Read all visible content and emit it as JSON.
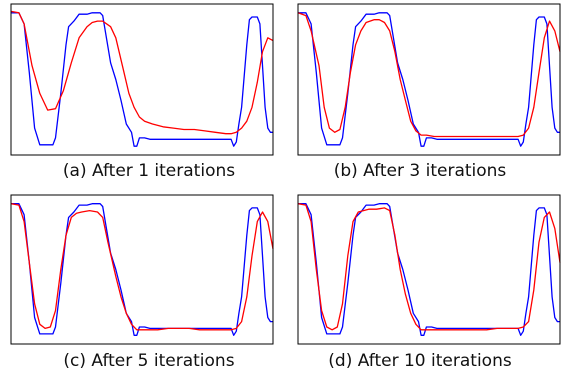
{
  "chart_data": [
    {
      "type": "line",
      "caption": "(a) After 1 iterations",
      "xlim": [
        0,
        100
      ],
      "ylim": [
        0,
        1
      ],
      "series": [
        {
          "color": "#0000ff",
          "x": [
            0,
            3,
            5,
            7,
            9,
            11,
            13,
            16,
            17,
            19,
            21,
            22,
            24,
            26,
            29,
            31,
            34,
            35,
            38,
            40,
            42,
            44,
            46,
            47,
            48,
            49,
            51,
            53,
            56,
            58,
            62,
            66,
            70,
            73,
            76,
            79,
            82,
            84,
            85,
            86,
            87,
            88,
            90,
            91,
            92,
            94,
            95,
            97,
            98,
            99,
            100
          ],
          "y": [
            0.98,
            0.98,
            0.9,
            0.55,
            0.15,
            0.03,
            0.03,
            0.03,
            0.08,
            0.4,
            0.75,
            0.88,
            0.92,
            0.97,
            0.97,
            0.98,
            0.98,
            0.96,
            0.62,
            0.5,
            0.35,
            0.18,
            0.12,
            0.02,
            0.02,
            0.08,
            0.08,
            0.07,
            0.07,
            0.07,
            0.07,
            0.07,
            0.07,
            0.07,
            0.07,
            0.07,
            0.07,
            0.07,
            0.02,
            0.05,
            0.18,
            0.3,
            0.75,
            0.93,
            0.95,
            0.95,
            0.9,
            0.3,
            0.15,
            0.12,
            0.12
          ]
        },
        {
          "color": "#ff0000",
          "x": [
            0,
            3,
            5,
            8,
            11,
            14,
            17,
            20,
            23,
            26,
            29,
            31,
            33,
            35,
            38,
            40,
            43,
            45,
            47,
            49,
            51,
            54,
            58,
            62,
            66,
            70,
            74,
            78,
            82,
            84,
            86,
            88,
            90,
            92,
            94,
            96,
            98,
            100
          ],
          "y": [
            0.99,
            0.98,
            0.9,
            0.6,
            0.4,
            0.28,
            0.29,
            0.42,
            0.62,
            0.8,
            0.88,
            0.91,
            0.92,
            0.92,
            0.88,
            0.8,
            0.56,
            0.4,
            0.3,
            0.23,
            0.2,
            0.18,
            0.16,
            0.15,
            0.14,
            0.14,
            0.13,
            0.12,
            0.11,
            0.11,
            0.12,
            0.15,
            0.2,
            0.3,
            0.48,
            0.7,
            0.8,
            0.78
          ]
        }
      ]
    },
    {
      "type": "line",
      "caption": "(b) After 3 iterations",
      "xlim": [
        0,
        100
      ],
      "ylim": [
        0,
        1
      ],
      "series": [
        {
          "color": "#0000ff",
          "x": [
            0,
            3,
            5,
            7,
            9,
            11,
            13,
            16,
            17,
            19,
            21,
            22,
            24,
            26,
            29,
            31,
            34,
            35,
            38,
            40,
            42,
            44,
            46,
            47,
            48,
            49,
            51,
            53,
            56,
            58,
            62,
            66,
            70,
            73,
            76,
            79,
            82,
            84,
            85,
            86,
            87,
            88,
            90,
            91,
            92,
            94,
            95,
            97,
            98,
            99,
            100
          ],
          "y": [
            0.98,
            0.98,
            0.9,
            0.55,
            0.15,
            0.03,
            0.03,
            0.03,
            0.08,
            0.4,
            0.75,
            0.88,
            0.92,
            0.97,
            0.97,
            0.98,
            0.98,
            0.96,
            0.62,
            0.5,
            0.35,
            0.18,
            0.12,
            0.02,
            0.02,
            0.08,
            0.08,
            0.07,
            0.07,
            0.07,
            0.07,
            0.07,
            0.07,
            0.07,
            0.07,
            0.07,
            0.07,
            0.07,
            0.02,
            0.05,
            0.18,
            0.3,
            0.75,
            0.93,
            0.95,
            0.95,
            0.9,
            0.3,
            0.15,
            0.12,
            0.12
          ]
        },
        {
          "color": "#ff0000",
          "x": [
            0,
            3,
            5,
            8,
            10,
            12,
            14,
            16,
            18,
            20,
            22,
            24,
            26,
            29,
            31,
            33,
            35,
            37,
            39,
            41,
            43,
            45,
            47,
            49,
            52,
            56,
            60,
            64,
            68,
            72,
            76,
            80,
            84,
            86,
            88,
            90,
            92,
            94,
            96,
            98,
            100
          ],
          "y": [
            0.98,
            0.96,
            0.85,
            0.6,
            0.3,
            0.15,
            0.12,
            0.14,
            0.3,
            0.55,
            0.75,
            0.85,
            0.91,
            0.93,
            0.93,
            0.91,
            0.85,
            0.7,
            0.5,
            0.35,
            0.2,
            0.13,
            0.1,
            0.1,
            0.09,
            0.09,
            0.09,
            0.09,
            0.09,
            0.09,
            0.09,
            0.09,
            0.09,
            0.1,
            0.15,
            0.3,
            0.55,
            0.8,
            0.92,
            0.85,
            0.7
          ]
        }
      ]
    },
    {
      "type": "line",
      "caption": "(c) After 5 iterations",
      "xlim": [
        0,
        100
      ],
      "ylim": [
        0,
        1
      ],
      "series": [
        {
          "color": "#0000ff",
          "x": [
            0,
            3,
            5,
            7,
            9,
            11,
            13,
            16,
            17,
            19,
            21,
            22,
            24,
            26,
            29,
            31,
            34,
            35,
            38,
            40,
            42,
            44,
            46,
            47,
            48,
            49,
            51,
            53,
            56,
            58,
            62,
            66,
            70,
            73,
            76,
            79,
            82,
            84,
            85,
            86,
            87,
            88,
            90,
            91,
            92,
            94,
            95,
            97,
            98,
            99,
            100
          ],
          "y": [
            0.98,
            0.98,
            0.9,
            0.55,
            0.15,
            0.03,
            0.03,
            0.03,
            0.08,
            0.4,
            0.75,
            0.88,
            0.92,
            0.97,
            0.97,
            0.98,
            0.98,
            0.96,
            0.62,
            0.5,
            0.35,
            0.18,
            0.12,
            0.02,
            0.02,
            0.08,
            0.08,
            0.07,
            0.07,
            0.07,
            0.07,
            0.07,
            0.07,
            0.07,
            0.07,
            0.07,
            0.07,
            0.07,
            0.02,
            0.05,
            0.18,
            0.3,
            0.75,
            0.93,
            0.95,
            0.95,
            0.9,
            0.3,
            0.15,
            0.12,
            0.12
          ]
        },
        {
          "color": "#ff0000",
          "x": [
            0,
            3,
            5,
            7,
            9,
            11,
            13,
            15,
            17,
            19,
            21,
            23,
            25,
            27,
            30,
            33,
            35,
            37,
            40,
            42,
            44,
            46,
            48,
            50,
            53,
            56,
            60,
            64,
            68,
            72,
            76,
            80,
            84,
            86,
            88,
            90,
            92,
            94,
            96,
            98,
            100
          ],
          "y": [
            0.98,
            0.97,
            0.85,
            0.55,
            0.25,
            0.1,
            0.07,
            0.08,
            0.2,
            0.5,
            0.75,
            0.88,
            0.91,
            0.92,
            0.93,
            0.92,
            0.88,
            0.7,
            0.45,
            0.3,
            0.18,
            0.1,
            0.06,
            0.06,
            0.06,
            0.06,
            0.07,
            0.07,
            0.07,
            0.06,
            0.06,
            0.06,
            0.06,
            0.07,
            0.12,
            0.3,
            0.6,
            0.85,
            0.92,
            0.85,
            0.65
          ]
        }
      ]
    },
    {
      "type": "line",
      "caption": "(d) After 10 iterations",
      "xlim": [
        0,
        100
      ],
      "ylim": [
        0,
        1
      ],
      "series": [
        {
          "color": "#0000ff",
          "x": [
            0,
            3,
            5,
            7,
            9,
            11,
            13,
            16,
            17,
            19,
            21,
            22,
            24,
            26,
            29,
            31,
            34,
            35,
            38,
            40,
            42,
            44,
            46,
            47,
            48,
            49,
            51,
            53,
            56,
            58,
            62,
            66,
            70,
            73,
            76,
            79,
            82,
            84,
            85,
            86,
            87,
            88,
            90,
            91,
            92,
            94,
            95,
            97,
            98,
            99,
            100
          ],
          "y": [
            0.98,
            0.98,
            0.9,
            0.55,
            0.15,
            0.03,
            0.03,
            0.03,
            0.08,
            0.4,
            0.75,
            0.88,
            0.92,
            0.97,
            0.97,
            0.98,
            0.98,
            0.96,
            0.62,
            0.5,
            0.35,
            0.18,
            0.12,
            0.02,
            0.02,
            0.08,
            0.08,
            0.07,
            0.07,
            0.07,
            0.07,
            0.07,
            0.07,
            0.07,
            0.07,
            0.07,
            0.07,
            0.07,
            0.02,
            0.05,
            0.18,
            0.3,
            0.75,
            0.93,
            0.95,
            0.95,
            0.9,
            0.3,
            0.15,
            0.12,
            0.12
          ]
        },
        {
          "color": "#ff0000",
          "x": [
            0,
            3,
            5,
            7,
            9,
            11,
            13,
            15,
            17,
            19,
            21,
            23,
            25,
            27,
            30,
            33,
            35,
            37,
            39,
            41,
            43,
            45,
            47,
            49,
            52,
            56,
            60,
            64,
            68,
            72,
            76,
            80,
            84,
            86,
            88,
            90,
            92,
            94,
            96,
            98,
            100
          ],
          "y": [
            0.98,
            0.97,
            0.85,
            0.5,
            0.2,
            0.08,
            0.06,
            0.08,
            0.25,
            0.6,
            0.85,
            0.92,
            0.93,
            0.94,
            0.94,
            0.95,
            0.93,
            0.75,
            0.5,
            0.32,
            0.18,
            0.1,
            0.06,
            0.06,
            0.06,
            0.06,
            0.06,
            0.06,
            0.06,
            0.06,
            0.07,
            0.07,
            0.07,
            0.08,
            0.12,
            0.35,
            0.7,
            0.88,
            0.92,
            0.8,
            0.55
          ]
        }
      ]
    }
  ]
}
